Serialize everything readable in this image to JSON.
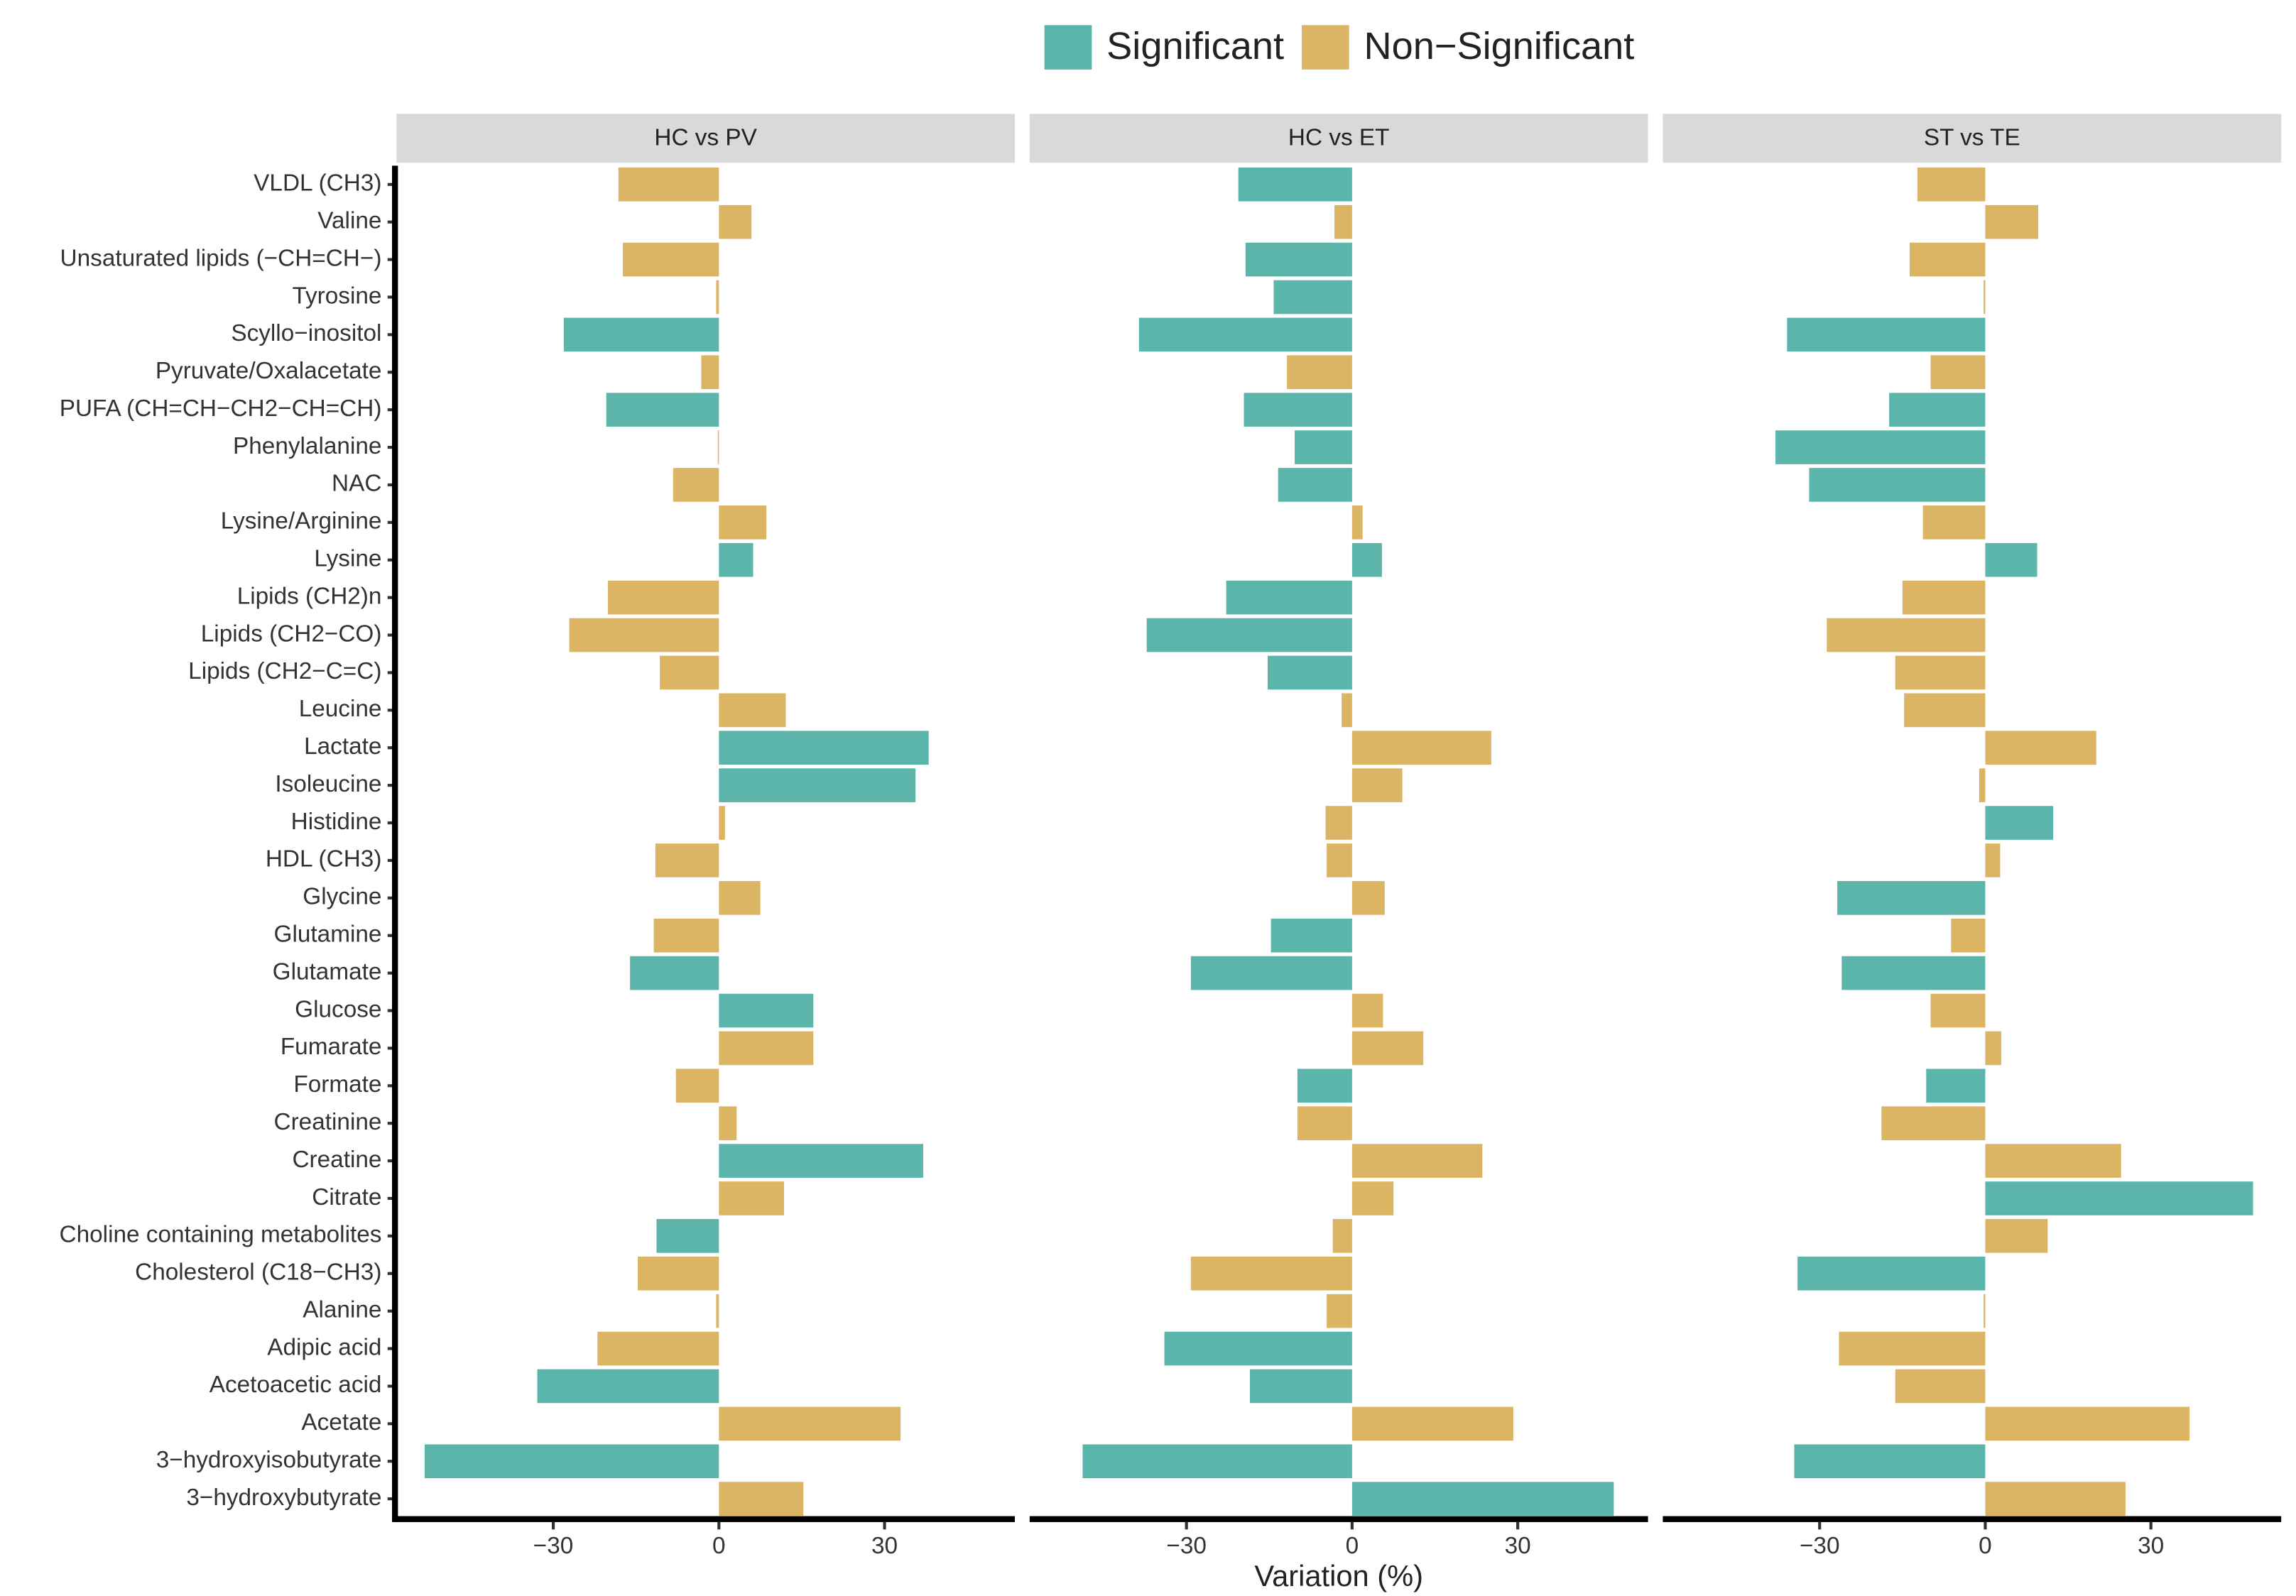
{
  "chart_data": {
    "type": "bar",
    "orientation": "horizontal",
    "x_label": "Variation (%)",
    "legend": [
      {
        "name": "Significant",
        "color": "#5bb5aa"
      },
      {
        "name": "Non−Significant",
        "color": "#dbb464"
      }
    ],
    "categories": [
      "VLDL (CH3)",
      "Valine",
      "Unsaturated lipids (−CH=CH−)",
      "Tyrosine",
      "Scyllo−inositol",
      "Pyruvate/Oxalacetate",
      "PUFA (CH=CH−CH2−CH=CH)",
      "Phenylalanine",
      "NAC",
      "Lysine/Arginine",
      "Lysine",
      "Lipids (CH2)n",
      "Lipids (CH2−CO)",
      "Lipids (CH2−C=C)",
      "Leucine",
      "Lactate",
      "Isoleucine",
      "Histidine",
      "HDL (CH3)",
      "Glycine",
      "Glutamine",
      "Glutamate",
      "Glucose",
      "Fumarate",
      "Formate",
      "Creatinine",
      "Creatine",
      "Citrate",
      "Choline containing metabolites",
      "Cholesterol (C18−CH3)",
      "Alanine",
      "Adipic acid",
      "Acetoacetic acid",
      "Acetate",
      "3−hydroxyisobutyrate",
      "3−hydroxybutyrate"
    ],
    "xlim": [
      -58.4,
      53.6
    ],
    "xticks": [
      {
        "value": -30,
        "label": "−30"
      },
      0,
      30
    ],
    "panels": [
      {
        "title": "HC vs PV",
        "values": [
          -18.2,
          5.9,
          -17.4,
          -0.5,
          -28.1,
          -3.2,
          -20.4,
          -0.2,
          -8.3,
          8.6,
          6.2,
          -20.1,
          -27.1,
          -10.7,
          12.1,
          38.0,
          35.6,
          1.1,
          -11.5,
          7.5,
          -11.8,
          -16.1,
          17.1,
          17.1,
          -7.8,
          3.2,
          37.0,
          11.8,
          -11.3,
          -14.7,
          -0.5,
          -22.0,
          -32.9,
          32.9,
          -53.3,
          15.3
        ],
        "colors": [
          "#dbb464",
          "#dbb464",
          "#dbb464",
          "#dbb464",
          "#5bb5aa",
          "#dbb464",
          "#5bb5aa",
          "#dbb464",
          "#dbb464",
          "#dbb464",
          "#5bb5aa",
          "#dbb464",
          "#dbb464",
          "#dbb464",
          "#dbb464",
          "#5bb5aa",
          "#5bb5aa",
          "#dbb464",
          "#dbb464",
          "#dbb464",
          "#dbb464",
          "#5bb5aa",
          "#5bb5aa",
          "#dbb464",
          "#dbb464",
          "#dbb464",
          "#5bb5aa",
          "#dbb464",
          "#5bb5aa",
          "#dbb464",
          "#dbb464",
          "#dbb464",
          "#5bb5aa",
          "#dbb464",
          "#5bb5aa",
          "#dbb464"
        ]
      },
      {
        "title": "HC vs ET",
        "values": [
          -20.6,
          -3.2,
          -19.3,
          -14.2,
          -38.6,
          -11.8,
          -19.6,
          -10.4,
          -13.4,
          1.9,
          5.4,
          -22.8,
          -37.2,
          -15.3,
          -1.9,
          25.2,
          9.1,
          -4.8,
          -4.6,
          5.9,
          -14.7,
          -29.2,
          5.6,
          12.9,
          -9.9,
          -9.9,
          23.6,
          7.5,
          -3.5,
          -29.2,
          -4.6,
          -34.0,
          -18.5,
          29.2,
          -48.8,
          47.4
        ],
        "colors": [
          "#5bb5aa",
          "#dbb464",
          "#5bb5aa",
          "#5bb5aa",
          "#5bb5aa",
          "#dbb464",
          "#5bb5aa",
          "#5bb5aa",
          "#5bb5aa",
          "#dbb464",
          "#5bb5aa",
          "#5bb5aa",
          "#5bb5aa",
          "#5bb5aa",
          "#dbb464",
          "#dbb464",
          "#dbb464",
          "#dbb464",
          "#dbb464",
          "#dbb464",
          "#5bb5aa",
          "#5bb5aa",
          "#dbb464",
          "#dbb464",
          "#5bb5aa",
          "#dbb464",
          "#dbb464",
          "#dbb464",
          "#dbb464",
          "#dbb464",
          "#dbb464",
          "#5bb5aa",
          "#5bb5aa",
          "#dbb464",
          "#5bb5aa",
          "#5bb5aa"
        ]
      },
      {
        "title": "ST vs TE",
        "values": [
          -12.3,
          9.6,
          -13.7,
          -0.3,
          -35.9,
          -9.9,
          -17.4,
          -38.0,
          -31.9,
          -11.3,
          9.4,
          -15.0,
          -28.7,
          -16.3,
          -14.7,
          20.1,
          -1.1,
          12.3,
          2.7,
          -26.8,
          -6.2,
          -26.0,
          -9.9,
          2.9,
          -10.7,
          -18.8,
          24.6,
          48.5,
          11.3,
          -34.0,
          -0.3,
          -26.5,
          -16.3,
          37.0,
          -34.6,
          25.4
        ],
        "colors": [
          "#dbb464",
          "#dbb464",
          "#dbb464",
          "#dbb464",
          "#5bb5aa",
          "#dbb464",
          "#5bb5aa",
          "#5bb5aa",
          "#5bb5aa",
          "#dbb464",
          "#5bb5aa",
          "#dbb464",
          "#dbb464",
          "#dbb464",
          "#dbb464",
          "#dbb464",
          "#dbb464",
          "#5bb5aa",
          "#dbb464",
          "#5bb5aa",
          "#dbb464",
          "#5bb5aa",
          "#dbb464",
          "#dbb464",
          "#5bb5aa",
          "#dbb464",
          "#dbb464",
          "#5bb5aa",
          "#dbb464",
          "#5bb5aa",
          "#dbb464",
          "#dbb464",
          "#dbb464",
          "#dbb464",
          "#5bb5aa",
          "#dbb464"
        ]
      }
    ]
  }
}
